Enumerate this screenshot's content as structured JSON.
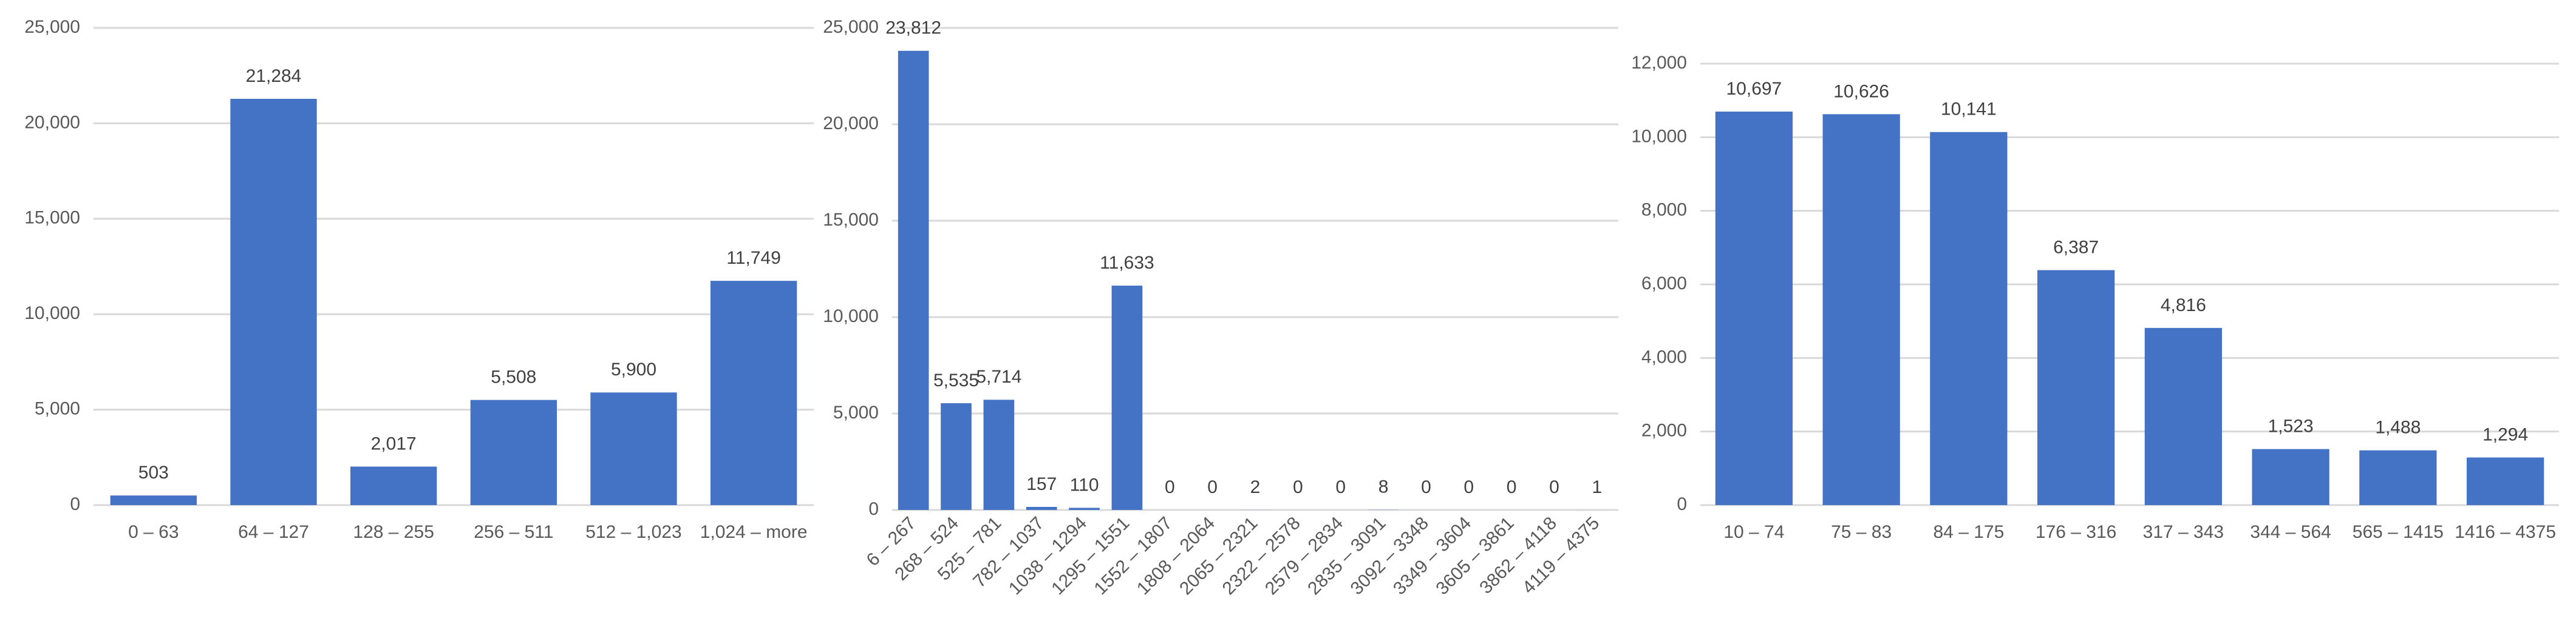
{
  "chart_data": [
    {
      "type": "bar",
      "categories": [
        "0 – 63",
        "64 – 127",
        "128 – 255",
        "256 – 511",
        "512 – 1,023",
        "1,024 – more"
      ],
      "values": [
        503,
        21284,
        2017,
        5508,
        5900,
        11749
      ],
      "value_labels": [
        "503",
        "21,284",
        "2,017",
        "5,508",
        "5,900",
        "11,749"
      ],
      "color": "#4472c4",
      "ylim": [
        0,
        25000
      ],
      "yticks": [
        0,
        {
          "value": 5000,
          "label": "5,000"
        },
        {
          "value": 10000,
          "label": "10,000"
        },
        {
          "value": 15000,
          "label": "15,000"
        },
        {
          "value": 20000,
          "label": "20,000"
        },
        {
          "value": 25000,
          "label": "25,000"
        }
      ],
      "grid": true
    },
    {
      "type": "bar",
      "categories": [
        "6 – 267",
        "268 – 524",
        "525 – 781",
        "782 – 1037",
        "1038 – 1294",
        "1295 – 1551",
        "1552 – 1807",
        "1808 – 2064",
        "2065 – 2321",
        "2322 – 2578",
        "2579 – 2834",
        "2835 – 3091",
        "3092 – 3348",
        "3349 – 3604",
        "3605 – 3861",
        "3862 – 4118",
        "4119 – 4375"
      ],
      "values": [
        23812,
        5535,
        5714,
        157,
        110,
        11633,
        0,
        0,
        2,
        0,
        0,
        8,
        0,
        0,
        0,
        0,
        1
      ],
      "value_labels": [
        "23,812",
        "5,535",
        "5,714",
        "157",
        "110",
        "11,633",
        "0",
        "0",
        "2",
        "0",
        "0",
        "8",
        "0",
        "0",
        "0",
        "0",
        "1"
      ],
      "color": "#4472c4",
      "ylim": [
        0,
        25000
      ],
      "yticks": [
        0,
        {
          "value": 5000,
          "label": "5,000"
        },
        {
          "value": 10000,
          "label": "10,000"
        },
        {
          "value": 15000,
          "label": "15,000"
        },
        {
          "value": 20000,
          "label": "20,000"
        },
        {
          "value": 25000,
          "label": "25,000"
        }
      ],
      "grid": true
    },
    {
      "type": "bar",
      "categories": [
        "10 – 74",
        "75 – 83",
        "84 – 175",
        "176 – 316",
        "317 – 343",
        "344 – 564",
        "565 – 1415",
        "1416 – 4375"
      ],
      "values": [
        10697,
        10626,
        10141,
        6387,
        4816,
        1523,
        1488,
        1294
      ],
      "value_labels": [
        "10,697",
        "10,626",
        "10,141",
        "6,387",
        "4,816",
        "1,523",
        "1,488",
        "1,294"
      ],
      "color": "#4472c4",
      "ylim": [
        0,
        12000
      ],
      "yticks": [
        0,
        {
          "value": 2000,
          "label": "2,000"
        },
        {
          "value": 4000,
          "label": "4,000"
        },
        {
          "value": 6000,
          "label": "6,000"
        },
        {
          "value": 8000,
          "label": "8,000"
        },
        {
          "value": 10000,
          "label": "10,000"
        },
        {
          "value": 12000,
          "label": "12,000"
        }
      ],
      "grid": true
    }
  ]
}
